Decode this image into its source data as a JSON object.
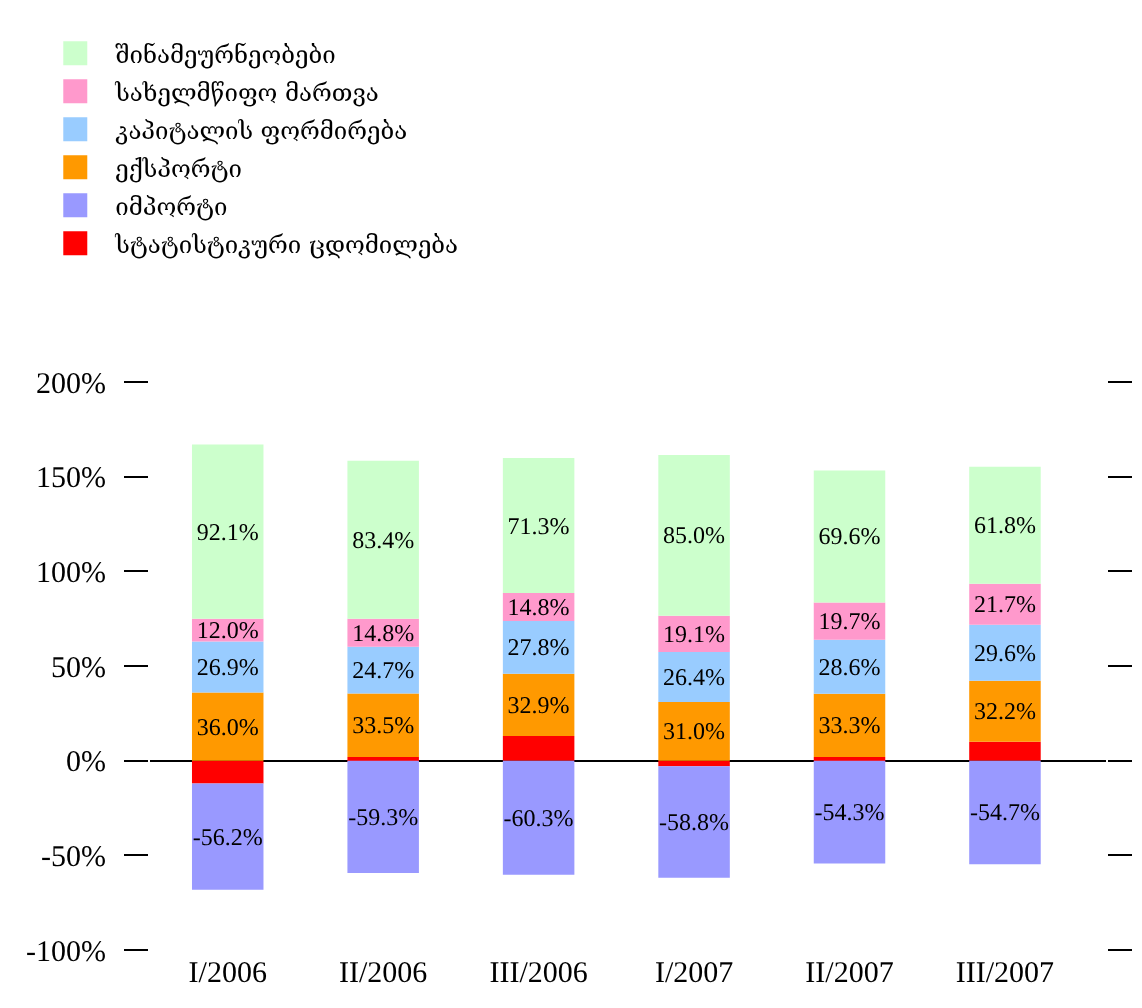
{
  "chart_data": {
    "type": "bar",
    "stacked": true,
    "categories": [
      "I/2006",
      "II/2006",
      "III/2006",
      "I/2007",
      "II/2007",
      "III/2007"
    ],
    "series": [
      {
        "name": "სტატისტიკური ცდომილება",
        "color": "#ff0000",
        "values": [
          -12,
          2,
          13,
          -3,
          2,
          10
        ]
      },
      {
        "name": "იმპორტი",
        "color": "#9999ff",
        "values": [
          -56.2,
          -59.3,
          -60.3,
          -58.8,
          -54.3,
          -54.7
        ],
        "value_labels": [
          "-56.2%",
          "-59.3%",
          "-60.3%",
          "-58.8%",
          "-54.3%",
          "-54.7%"
        ]
      },
      {
        "name": "ექსპორტი",
        "color": "#ff9900",
        "values": [
          36.0,
          33.5,
          32.9,
          31.0,
          33.3,
          32.2
        ],
        "value_labels": [
          "36.0%",
          "33.5%",
          "32.9%",
          "31.0%",
          "33.3%",
          "32.2%"
        ]
      },
      {
        "name": "კაპიტალის ფორმირება",
        "color": "#99ccff",
        "values": [
          26.9,
          24.7,
          27.8,
          26.4,
          28.6,
          29.6
        ],
        "value_labels": [
          "26.9%",
          "24.7%",
          "27.8%",
          "26.4%",
          "28.6%",
          "29.6%"
        ]
      },
      {
        "name": "სახელმწიფო მართვა",
        "color": "#ff99cc",
        "values": [
          12.0,
          14.8,
          14.8,
          19.1,
          19.7,
          21.7
        ],
        "value_labels": [
          "12.0%",
          "14.8%",
          "14.8%",
          "19.1%",
          "19.7%",
          "21.7%"
        ]
      },
      {
        "name": "შინამეურნეობები",
        "color": "#ccffcc",
        "values": [
          92.1,
          83.4,
          71.3,
          85.0,
          69.6,
          61.8
        ],
        "value_labels": [
          "92.1%",
          "83.4%",
          "71.3%",
          "85.0%",
          "69.6%",
          "61.8%"
        ]
      }
    ],
    "ylim": [
      -100,
      200
    ],
    "yticks": [
      {
        "value": -100,
        "label": "-100%"
      },
      {
        "value": -50,
        "label": "-50%"
      },
      {
        "value": 0,
        "label": "0%"
      },
      {
        "value": 50,
        "label": "50%"
      },
      {
        "value": 100,
        "label": "100%"
      },
      {
        "value": 150,
        "label": "150%"
      },
      {
        "value": 200,
        "label": "200%"
      }
    ],
    "legend": "top left"
  }
}
